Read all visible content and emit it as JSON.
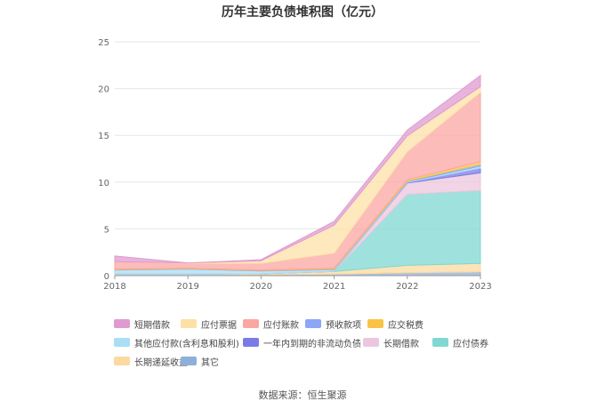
{
  "chart_data": {
    "type": "area",
    "stacked": true,
    "title": "历年主要负债堆积图（亿元）",
    "categories": [
      "2018",
      "2019",
      "2020",
      "2021",
      "2022",
      "2023"
    ],
    "ylim": [
      0,
      25
    ],
    "yticks": [
      0,
      5,
      10,
      15,
      20,
      25
    ],
    "grid": true,
    "legend_position": "bottom",
    "series": [
      {
        "name": "其它",
        "color": "#8eafd9",
        "values": [
          0.1,
          0.1,
          0.1,
          0.15,
          0.3,
          0.4
        ]
      },
      {
        "name": "长期递延收益",
        "color": "#fcd9a0",
        "values": [
          0.05,
          0.05,
          0.1,
          0.3,
          0.8,
          0.9
        ]
      },
      {
        "name": "应付债券",
        "color": "#7fd8d2",
        "values": [
          0,
          0,
          0,
          0,
          7.6,
          7.8
        ]
      },
      {
        "name": "长期借款",
        "color": "#ecc6de",
        "values": [
          0,
          0,
          0,
          0,
          1.2,
          1.9
        ]
      },
      {
        "name": "一年内到期的非流动负债",
        "color": "#7b7be8",
        "values": [
          0,
          0,
          0,
          0,
          0.05,
          0.5
        ]
      },
      {
        "name": "其他应付款(含利息和股利)",
        "color": "#a9def5",
        "values": [
          0.45,
          0.55,
          0.3,
          0.2,
          0.1,
          0.2
        ]
      },
      {
        "name": "预收款项",
        "color": "#8ca7f5",
        "values": [
          0.05,
          0.05,
          0.05,
          0.05,
          0.05,
          0.2
        ]
      },
      {
        "name": "应交税费",
        "color": "#f9c445",
        "values": [
          0.05,
          0.05,
          0.05,
          0.1,
          0.15,
          0.3
        ]
      },
      {
        "name": "应付账款",
        "color": "#fba6a2",
        "values": [
          0.8,
          0.5,
          0.7,
          1.6,
          3.0,
          7.4
        ]
      },
      {
        "name": "应付票据",
        "color": "#fde0a8",
        "values": [
          0,
          0.05,
          0.3,
          3.0,
          1.7,
          0.6
        ]
      },
      {
        "name": "短期借款",
        "color": "#df9bd0",
        "values": [
          0.6,
          0,
          0.1,
          0.4,
          0.6,
          1.2
        ]
      }
    ],
    "legend_order": [
      "短期借款",
      "应付票据",
      "应付账款",
      "预收款项",
      "应交税费",
      "其他应付款(含利息和股利)",
      "一年内到期的非流动负债",
      "长期借款",
      "应付债券",
      "长期递延收益",
      "其它"
    ]
  },
  "source_text": "数据来源：恒生聚源"
}
